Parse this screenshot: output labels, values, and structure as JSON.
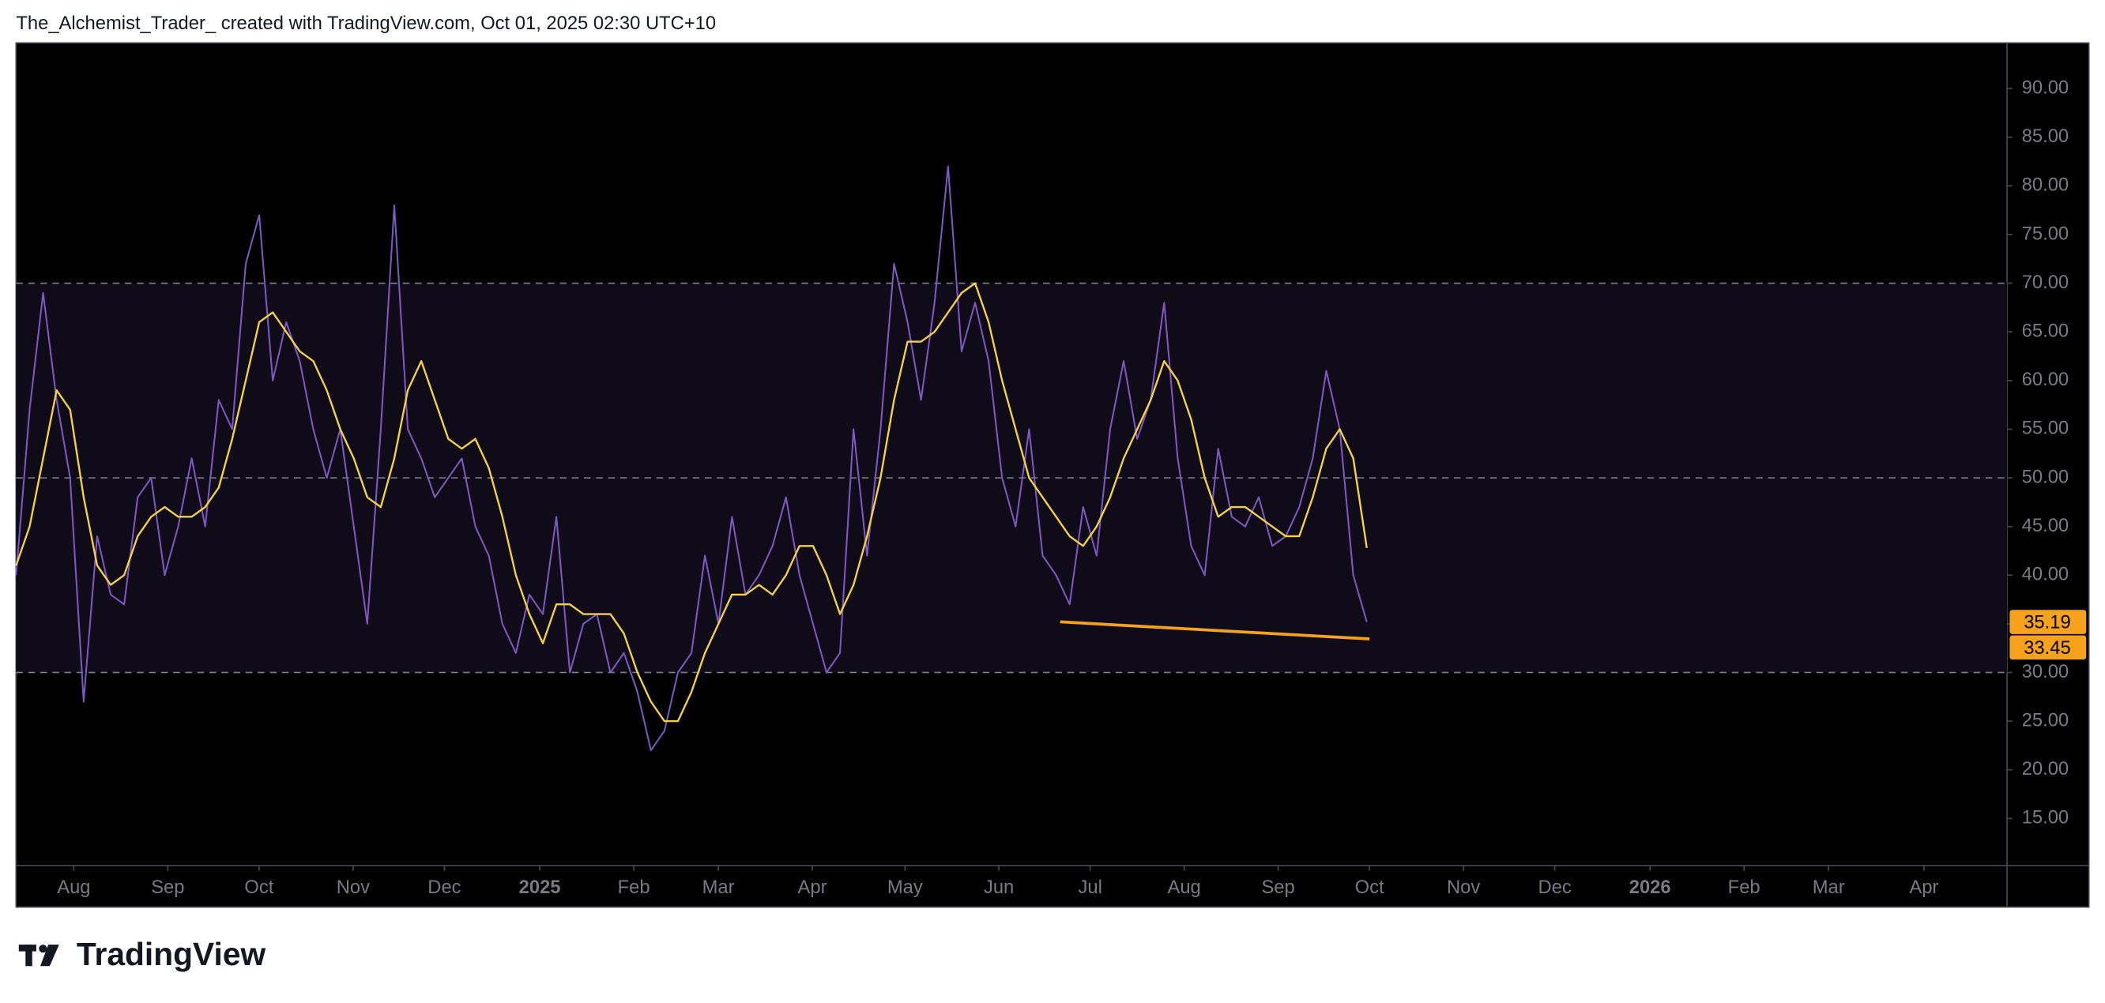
{
  "header": "The_Alchemist_Trader_ created with TradingView.com, Oct 01, 2025 02:30 UTC+10",
  "watermark": "TradingView",
  "chart_data": {
    "type": "line",
    "xlim": [
      0,
      147.4
    ],
    "xticks": [
      {
        "value": 4.27,
        "label": "Aug"
      },
      {
        "value": 11.23,
        "label": "Sep"
      },
      {
        "value": 17.99,
        "label": "Oct"
      },
      {
        "value": 24.95,
        "label": "Nov"
      },
      {
        "value": 31.71,
        "label": "Dec"
      },
      {
        "value": 38.77,
        "label": "2025"
      },
      {
        "value": 45.73,
        "label": "Feb"
      },
      {
        "value": 51.99,
        "label": "Mar"
      },
      {
        "value": 58.95,
        "label": "Apr"
      },
      {
        "value": 65.81,
        "label": "May"
      },
      {
        "value": 72.76,
        "label": "Jun"
      },
      {
        "value": 79.52,
        "label": "Jul"
      },
      {
        "value": 86.48,
        "label": "Aug"
      },
      {
        "value": 93.44,
        "label": "Sep"
      },
      {
        "value": 100.2,
        "label": "Oct"
      },
      {
        "value": 107.16,
        "label": "Nov"
      },
      {
        "value": 113.92,
        "label": "Dec"
      },
      {
        "value": 120.97,
        "label": "2026"
      },
      {
        "value": 127.93,
        "label": "Feb"
      },
      {
        "value": 134.19,
        "label": "Mar"
      },
      {
        "value": 141.25,
        "label": "Apr"
      }
    ],
    "ylim": [
      10.17,
      94.69
    ],
    "yticks": [
      {
        "value": 15,
        "label": "15.00"
      },
      {
        "value": 20,
        "label": "20.00"
      },
      {
        "value": 25,
        "label": "25.00"
      },
      {
        "value": 30,
        "label": "30.00"
      },
      {
        "value": 35,
        "label": "35.00"
      },
      {
        "value": 40,
        "label": "40.00"
      },
      {
        "value": 45,
        "label": "45.00"
      },
      {
        "value": 50,
        "label": "50.00"
      },
      {
        "value": 55,
        "label": "55.00"
      },
      {
        "value": 60,
        "label": "60.00"
      },
      {
        "value": 65,
        "label": "65.00"
      },
      {
        "value": 70,
        "label": "70.00"
      },
      {
        "value": 75,
        "label": "75.00"
      },
      {
        "value": 80,
        "label": "80.00"
      },
      {
        "value": 85,
        "label": "85.00"
      },
      {
        "value": 90,
        "label": "90.00"
      }
    ],
    "band": [
      30,
      70
    ],
    "band_color": "#0f0b18",
    "hlines": [
      30,
      50,
      70
    ],
    "series": [
      {
        "color": "#7e57c2",
        "values": [
          40,
          57,
          69,
          58,
          50,
          27,
          44,
          38,
          37,
          48,
          50,
          40,
          45,
          52,
          45,
          58,
          55,
          72,
          77,
          60,
          66,
          62,
          55,
          50,
          55,
          45,
          35,
          55,
          78,
          55,
          52,
          48,
          50,
          52,
          45,
          42,
          35,
          32,
          38,
          36,
          46,
          30,
          35,
          36,
          30,
          32,
          28,
          22,
          24,
          30,
          32,
          42,
          35,
          46,
          38,
          40,
          43,
          48,
          40,
          35,
          30,
          32,
          55,
          42,
          55,
          72,
          66,
          58,
          68,
          82,
          63,
          68,
          62,
          50,
          45,
          55,
          42,
          40,
          37,
          47,
          42,
          55,
          62,
          54,
          58,
          68,
          52,
          43,
          40,
          53,
          46,
          45,
          48,
          43,
          44,
          47,
          52,
          61,
          55,
          40,
          35.19
        ]
      },
      {
        "color": "#f5d142",
        "values": [
          41,
          45,
          52,
          59,
          57,
          48,
          41,
          39,
          40,
          44,
          46,
          47,
          46,
          46,
          47,
          49,
          54,
          60,
          66,
          67,
          65,
          63,
          62,
          59,
          55,
          52,
          48,
          47,
          52,
          59,
          62,
          58,
          54,
          53,
          54,
          51,
          46,
          40,
          36,
          33,
          37,
          37,
          36,
          36,
          36,
          34,
          30,
          27,
          25,
          25,
          28,
          32,
          35,
          38,
          38,
          39,
          38,
          40,
          43,
          43,
          40,
          36,
          39,
          44,
          50,
          58,
          64,
          64,
          65,
          67,
          69,
          70,
          66,
          60,
          55,
          50,
          48,
          46,
          44,
          43,
          45,
          48,
          52,
          55,
          58,
          62,
          60,
          56,
          50,
          46,
          47,
          47,
          46,
          45,
          44,
          44,
          48,
          53,
          55,
          52,
          42.8
        ]
      }
    ],
    "trendline": {
      "color": "#f7a21b",
      "x": [
        77.3,
        100.2
      ],
      "values": [
        35.2,
        33.45
      ]
    },
    "price_labels": [
      {
        "value": 35.19,
        "label": "35.19"
      },
      {
        "value": 33.45,
        "label": "33.45"
      }
    ],
    "price_label_color": "#f7a21b"
  }
}
